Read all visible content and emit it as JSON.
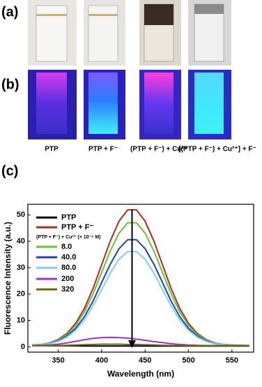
{
  "figure": {
    "panel_labels": [
      "(a)",
      "(b)",
      "(c)"
    ],
    "sample_labels": [
      "PTP",
      "PTP + F⁻",
      "(PTP + F⁻) + Cu²⁺",
      "[(PTP + F⁻) + Cu²⁺] + F⁻"
    ]
  },
  "chart_data": {
    "type": "line",
    "x_label": "Wavelength (nm)",
    "y_label": "Fluorescence Intensity (a.u.)",
    "legend_title": "(PTP + F⁻) + Cu²⁺ (× 10⁻⁶ M)",
    "legend": "upper left",
    "x": [
      320,
      330,
      340,
      350,
      360,
      370,
      380,
      390,
      400,
      410,
      420,
      430,
      440,
      450,
      460,
      470,
      480,
      490,
      500,
      510,
      520,
      530,
      540,
      550,
      560,
      570
    ],
    "series": [
      {
        "name": "PTP",
        "color": "#000000",
        "values": [
          0.5,
          0.5,
          0.4,
          0.4,
          0.4,
          0.4,
          0.3,
          0.3,
          0.3,
          0.3,
          0.3,
          0.3,
          0.3,
          0.3,
          0.3,
          0.3,
          0.3,
          0.3,
          0.3,
          0.3,
          0.3,
          0.3,
          0.3,
          0.3,
          0.3,
          0.3
        ]
      },
      {
        "name": "PTP + F⁻",
        "color": "#b22a22",
        "values": [
          0.7,
          0.9,
          1.5,
          2.8,
          5.1,
          8.9,
          14.5,
          22.1,
          31.1,
          40.2,
          47.6,
          51.9,
          51.9,
          47.6,
          40.2,
          31.1,
          22.1,
          14.5,
          8.9,
          5.1,
          2.8,
          1.5,
          0.9,
          0.7,
          0.6,
          0.5
        ]
      },
      {
        "name": "8.0",
        "color": "#66c433",
        "values": [
          0.7,
          0.9,
          1.4,
          2.6,
          4.6,
          8.1,
          13.2,
          20.1,
          28.2,
          36.4,
          43.1,
          47.0,
          47.0,
          43.1,
          36.4,
          28.2,
          20.1,
          13.2,
          8.1,
          4.6,
          2.6,
          1.4,
          0.9,
          0.7,
          0.6,
          0.5
        ]
      },
      {
        "name": "40.0",
        "color": "#1f3fbf",
        "values": [
          0.6,
          0.8,
          1.3,
          2.3,
          4.1,
          7.0,
          11.4,
          17.3,
          24.4,
          31.4,
          37.2,
          40.6,
          40.6,
          37.2,
          31.4,
          24.4,
          17.3,
          11.4,
          7.0,
          4.1,
          2.3,
          1.3,
          0.8,
          0.6,
          0.5,
          0.5
        ]
      },
      {
        "name": "80.0",
        "color": "#7fd0ee",
        "values": [
          0.6,
          0.8,
          1.2,
          2.1,
          3.7,
          6.3,
          10.2,
          15.5,
          21.7,
          28.0,
          33.2,
          36.1,
          36.1,
          33.2,
          28.0,
          21.7,
          15.5,
          10.2,
          6.3,
          3.7,
          2.1,
          1.2,
          0.8,
          0.6,
          0.5,
          0.5
        ]
      },
      {
        "name": "200",
        "color": "#9b30d9",
        "values": [
          0.5,
          0.6,
          0.7,
          1.0,
          1.5,
          2.1,
          2.7,
          3.2,
          3.5,
          3.6,
          3.5,
          3.3,
          2.9,
          2.5,
          2.0,
          1.6,
          1.2,
          0.9,
          0.7,
          0.6,
          0.5,
          0.5,
          0.5,
          0.5,
          0.5,
          0.5
        ]
      },
      {
        "name": "320",
        "color": "#6b6b00",
        "values": [
          0.4,
          0.4,
          0.5,
          0.5,
          0.6,
          0.7,
          0.8,
          0.9,
          1.0,
          1.0,
          1.0,
          0.9,
          0.9,
          0.8,
          0.7,
          0.6,
          0.5,
          0.5,
          0.4,
          0.4,
          0.4,
          0.4,
          0.4,
          0.4,
          0.4,
          0.4
        ]
      }
    ],
    "xlim": [
      315,
      575
    ],
    "ylim": [
      -2,
      54
    ],
    "xticks": [
      350,
      400,
      450,
      500,
      550
    ],
    "yticks": [
      0,
      10,
      20,
      30,
      40,
      50
    ]
  }
}
